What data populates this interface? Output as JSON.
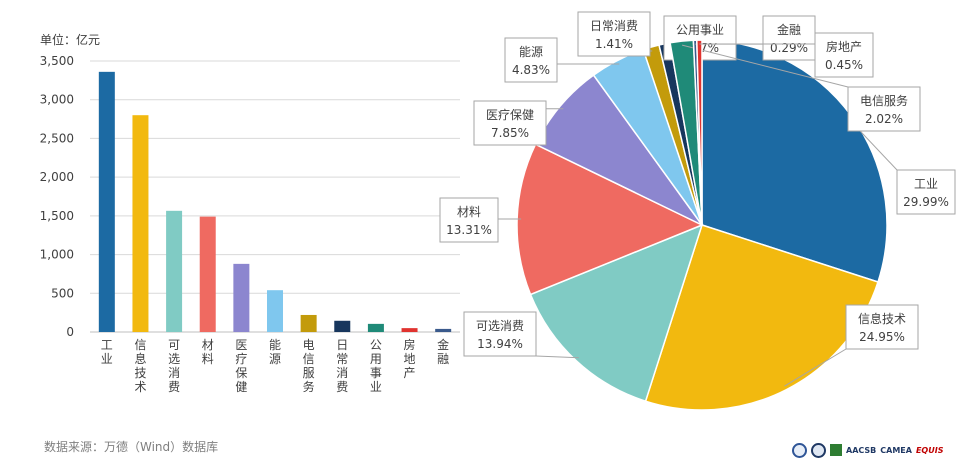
{
  "chart_data": [
    {
      "type": "bar",
      "unit_label": "单位：亿元",
      "categories": [
        "工业",
        "信息技术",
        "可选消费",
        "材料",
        "医疗保健",
        "能源",
        "电信服务",
        "日常消费",
        "公用事业",
        "房地产",
        "金融"
      ],
      "values": [
        3360,
        2800,
        1565,
        1490,
        880,
        540,
        220,
        145,
        105,
        50,
        40
      ],
      "colors": [
        "#1c6aa3",
        "#f2b90f",
        "#80cbc4",
        "#ef6a61",
        "#8c86cf",
        "#7fc7ee",
        "#c39b0b",
        "#17365d",
        "#1f8a78",
        "#e0332f",
        "#3a5a8c"
      ],
      "ylim": [
        0,
        3500
      ],
      "yticks": [
        "0",
        "500",
        "1,000",
        "1,500",
        "2,000",
        "2,500",
        "3,000",
        "3,500"
      ],
      "grid": true
    },
    {
      "type": "pie",
      "slices": [
        {
          "label": "工业",
          "pct_label": "29.99%",
          "value": 29.99,
          "color": "#1c6aa3"
        },
        {
          "label": "信息技术",
          "pct_label": "24.95%",
          "value": 24.95,
          "color": "#f2b90f"
        },
        {
          "label": "可选消费",
          "pct_label": "13.94%",
          "value": 13.94,
          "color": "#80cbc4"
        },
        {
          "label": "材料",
          "pct_label": "13.31%",
          "value": 13.31,
          "color": "#ef6a61"
        },
        {
          "label": "医疗保健",
          "pct_label": "7.85%",
          "value": 7.85,
          "color": "#8c86cf"
        },
        {
          "label": "能源",
          "pct_label": "4.83%",
          "value": 4.83,
          "color": "#7fc7ee"
        },
        {
          "label": "日常消费",
          "pct_label": "1.41%",
          "value": 1.41,
          "color": "#c39b0b"
        },
        {
          "label": "公用事业",
          "pct_label": "0.97%",
          "value": 0.97,
          "color": "#17365d"
        },
        {
          "label": "电信服务",
          "pct_label": "2.02%",
          "value": 2.02,
          "color": "#1f8a78"
        },
        {
          "label": "金融",
          "pct_label": "0.29%",
          "value": 0.29,
          "color": "#3a5a8c"
        },
        {
          "label": "房地产",
          "pct_label": "0.45%",
          "value": 0.45,
          "color": "#e0332f"
        }
      ]
    }
  ],
  "footer": {
    "source": "数据来源：万德（Wind）数据库"
  },
  "logos": {
    "aacsb": "AACSB",
    "camea": "CAMEA",
    "equis": "EQUIS"
  }
}
